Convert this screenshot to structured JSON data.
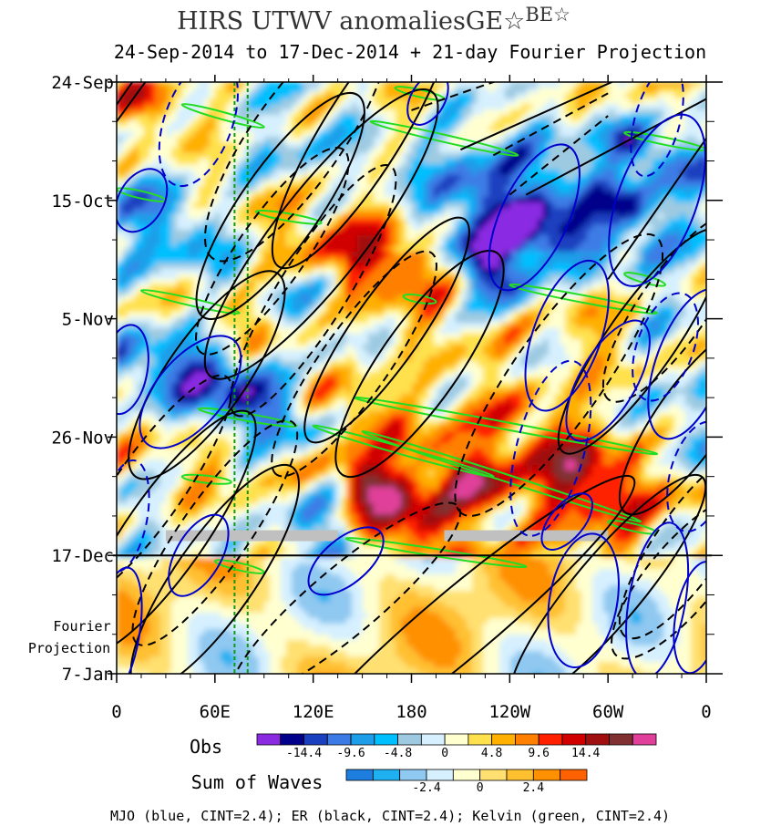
{
  "chart_data": {
    "type": "heatmap",
    "title": "HIRS UTWV anomaliesGE☆",
    "title_superscript": "BE☆",
    "subtitle": "24-Sep-2014 to 17-Dec-2014 + 21-day Fourier Projection",
    "x_tick_labels": [
      "0",
      "60E",
      "120E",
      "180",
      "120W",
      "60W",
      "0"
    ],
    "x_tick_lon": [
      0,
      60,
      120,
      180,
      240,
      300,
      360
    ],
    "xlim": [
      0,
      360
    ],
    "y_tick_labels": [
      "24-Sep",
      "15-Oct",
      "5-Nov",
      "26-Nov",
      "17-Dec",
      "7-Jan"
    ],
    "y_tick_days": [
      0,
      21,
      42,
      63,
      84,
      105
    ],
    "ylim_days": [
      0,
      105
    ],
    "projection_start_day": 84,
    "projection_label": [
      "Fourier",
      "Projection"
    ],
    "reference_lons": [
      72,
      80
    ],
    "obs_colorbar": {
      "label": "Obs",
      "colors": [
        "#8a2be2",
        "#00008b",
        "#1a3fbf",
        "#3c7be6",
        "#1e9ee8",
        "#00bfff",
        "#9ecae1",
        "#d6f0ff",
        "#ffffd0",
        "#ffe14d",
        "#ffb000",
        "#ff8000",
        "#ff2000",
        "#d00000",
        "#a01010",
        "#803030",
        "#e0409a"
      ],
      "tick_labels": [
        "-14.4",
        "-9.6",
        "-4.8",
        "0",
        "4.8",
        "9.6",
        "14.4"
      ]
    },
    "waves_colorbar": {
      "label": "Sum of Waves",
      "colors": [
        "#1e7ee0",
        "#1eb0f0",
        "#8fc8f0",
        "#d6f0ff",
        "#ffffd0",
        "#ffe070",
        "#ffc030",
        "#ff9000",
        "#ff6000"
      ],
      "tick_labels": [
        "-2.4",
        "0",
        "2.4"
      ]
    },
    "legend_text": "MJO (blue, CINT=2.4); ER (black, CINT=2.4); Kelvin (green, CINT=2.4)",
    "series_colors": {
      "mjo": "#0000cc",
      "er": "#000000",
      "kelvin": "#22dd22",
      "missing": "#c0c0c0"
    },
    "er_contours": [
      {
        "lon": 150,
        "day": 9,
        "a": 28,
        "b": 7,
        "ang": 58,
        "neg": false
      },
      {
        "lon": 110,
        "day": 10,
        "a": 26,
        "b": 8,
        "ang": 55,
        "neg": true
      },
      {
        "lon": 100,
        "day": 22,
        "a": 24,
        "b": 7,
        "ang": 55,
        "neg": false
      },
      {
        "lon": 125,
        "day": 27,
        "a": 32,
        "b": 8,
        "ang": 52,
        "neg": false
      },
      {
        "lon": 120,
        "day": 37,
        "a": 26,
        "b": 6,
        "ang": 58,
        "neg": true
      },
      {
        "lon": 95,
        "day": 30,
        "a": 22,
        "b": 6,
        "ang": 55,
        "neg": true
      },
      {
        "lon": 165,
        "day": 44,
        "a": 24,
        "b": 6,
        "ang": 55,
        "neg": false
      },
      {
        "lon": 145,
        "day": 50,
        "a": 24,
        "b": 6,
        "ang": 55,
        "neg": true
      },
      {
        "lon": 185,
        "day": 50,
        "a": 24,
        "b": 7,
        "ang": 55,
        "neg": false
      },
      {
        "lon": 55,
        "day": 52,
        "a": 22,
        "b": 7,
        "ang": 55,
        "neg": false
      },
      {
        "lon": 30,
        "day": 80,
        "a": 26,
        "b": 7,
        "ang": 55,
        "neg": false
      },
      {
        "lon": 60,
        "day": 80,
        "a": 24,
        "b": 6,
        "ang": 55,
        "neg": true
      },
      {
        "lon": 20,
        "day": 72,
        "a": 24,
        "b": 6,
        "ang": 55,
        "neg": true
      },
      {
        "lon": 60,
        "day": 88,
        "a": 24,
        "b": 7,
        "ang": 55,
        "neg": false
      },
      {
        "lon": 270,
        "day": 52,
        "a": 30,
        "b": 8,
        "ang": 55,
        "neg": true
      },
      {
        "lon": 320,
        "day": 46,
        "a": 24,
        "b": 6,
        "ang": 55,
        "neg": false
      },
      {
        "lon": 340,
        "day": 40,
        "a": 20,
        "b": 6,
        "ang": 55,
        "neg": true
      },
      {
        "lon": 350,
        "day": 60,
        "a": 20,
        "b": 6,
        "ang": 55,
        "neg": false
      },
      {
        "lon": 350,
        "day": 82,
        "a": 20,
        "b": 6,
        "ang": 55,
        "neg": true
      },
      {
        "lon": 210,
        "day": 96,
        "a": 40,
        "b": 6,
        "ang": 40,
        "neg": false
      },
      {
        "lon": 140,
        "day": 92,
        "a": 26,
        "b": 6,
        "ang": 40,
        "neg": true
      },
      {
        "lon": 300,
        "day": 90,
        "a": 26,
        "b": 6,
        "ang": 50,
        "neg": false
      },
      {
        "lon": 345,
        "day": 88,
        "a": 18,
        "b": 6,
        "ang": 50,
        "neg": true
      }
    ],
    "er_lines": [
      {
        "lon1": 0,
        "day1": 4,
        "lon2": 12,
        "day2": -1,
        "neg": false
      },
      {
        "lon1": 0,
        "day1": 7,
        "lon2": 20,
        "day2": -1,
        "neg": false
      },
      {
        "lon1": 210,
        "day1": 12,
        "lon2": 310,
        "day2": -1,
        "neg": false
      },
      {
        "lon1": 250,
        "day1": 20,
        "lon2": 360,
        "day2": 3,
        "neg": false
      },
      {
        "lon1": 240,
        "day1": 20,
        "lon2": 300,
        "day2": 6,
        "neg": true
      },
      {
        "lon1": 300,
        "day1": 35,
        "lon2": 360,
        "day2": 10,
        "neg": false
      },
      {
        "lon1": 180,
        "day1": 5,
        "lon2": 240,
        "day2": -1,
        "neg": true
      },
      {
        "lon1": 230,
        "day1": 13,
        "lon2": 300,
        "day2": 2,
        "neg": true
      }
    ],
    "mjo_contours": [
      {
        "lon": 15,
        "day": 21,
        "a": 6,
        "b": 4,
        "ang": 60,
        "neg": false
      },
      {
        "lon": 50,
        "day": 7,
        "a": 12,
        "b": 6,
        "ang": 70,
        "neg": true
      },
      {
        "lon": 255,
        "day": 24,
        "a": 14,
        "b": 6,
        "ang": 65,
        "neg": false
      },
      {
        "lon": 330,
        "day": 21,
        "a": 16,
        "b": 7,
        "ang": 70,
        "neg": false
      },
      {
        "lon": 330,
        "day": 7,
        "a": 10,
        "b": 4,
        "ang": 75,
        "neg": true
      },
      {
        "lon": 190,
        "day": 3,
        "a": 5,
        "b": 3,
        "ang": 60,
        "neg": false
      },
      {
        "lon": 275,
        "day": 45,
        "a": 14,
        "b": 6,
        "ang": 70,
        "neg": false
      },
      {
        "lon": 300,
        "day": 53,
        "a": 12,
        "b": 5,
        "ang": 60,
        "neg": false
      },
      {
        "lon": 335,
        "day": 47,
        "a": 10,
        "b": 5,
        "ang": 70,
        "neg": true
      },
      {
        "lon": 350,
        "day": 50,
        "a": 14,
        "b": 6,
        "ang": 70,
        "neg": false
      },
      {
        "lon": 265,
        "day": 65,
        "a": 16,
        "b": 6,
        "ang": 75,
        "neg": true
      },
      {
        "lon": 355,
        "day": 70,
        "a": 10,
        "b": 5,
        "ang": 75,
        "neg": true
      },
      {
        "lon": 45,
        "day": 55,
        "a": 12,
        "b": 6,
        "ang": 50,
        "neg": false
      },
      {
        "lon": 5,
        "day": 51,
        "a": 8,
        "b": 4,
        "ang": 80,
        "neg": false
      },
      {
        "lon": 5,
        "day": 77,
        "a": 10,
        "b": 4,
        "ang": 80,
        "neg": true
      },
      {
        "lon": 50,
        "day": 84,
        "a": 8,
        "b": 4,
        "ang": 60,
        "neg": false
      },
      {
        "lon": 285,
        "day": 92,
        "a": 12,
        "b": 6,
        "ang": 80,
        "neg": false
      },
      {
        "lon": 330,
        "day": 92,
        "a": 14,
        "b": 5,
        "ang": 80,
        "neg": false
      },
      {
        "lon": 355,
        "day": 95,
        "a": 10,
        "b": 4,
        "ang": 80,
        "neg": false
      },
      {
        "lon": 140,
        "day": 85,
        "a": 8,
        "b": 4,
        "ang": 40,
        "neg": false
      },
      {
        "lon": 275,
        "day": 78,
        "a": 6,
        "b": 3,
        "ang": 50,
        "neg": false
      },
      {
        "lon": 0,
        "day": 98,
        "a": 12,
        "b": 4,
        "ang": 80,
        "neg": false
      }
    ],
    "kelvin_bands": [
      {
        "lon1": 40,
        "day1": 4,
        "lon2": 90,
        "day2": 8
      },
      {
        "lon1": 170,
        "day1": 1,
        "lon2": 200,
        "day2": 3
      },
      {
        "lon1": 155,
        "day1": 7,
        "lon2": 245,
        "day2": 13
      },
      {
        "lon1": 310,
        "day1": 9,
        "lon2": 360,
        "day2": 12
      },
      {
        "lon1": 0,
        "day1": 19,
        "lon2": 30,
        "day2": 21
      },
      {
        "lon1": 85,
        "day1": 23,
        "lon2": 125,
        "day2": 25
      },
      {
        "lon1": 15,
        "day1": 37,
        "lon2": 75,
        "day2": 41
      },
      {
        "lon1": 175,
        "day1": 38,
        "lon2": 195,
        "day2": 39
      },
      {
        "lon1": 240,
        "day1": 36,
        "lon2": 330,
        "day2": 41
      },
      {
        "lon1": 310,
        "day1": 34,
        "lon2": 335,
        "day2": 36
      },
      {
        "lon1": 145,
        "day1": 56,
        "lon2": 330,
        "day2": 66
      },
      {
        "lon1": 50,
        "day1": 58,
        "lon2": 110,
        "day2": 61
      },
      {
        "lon1": 120,
        "day1": 61,
        "lon2": 230,
        "day2": 70
      },
      {
        "lon1": 150,
        "day1": 62,
        "lon2": 320,
        "day2": 78
      },
      {
        "lon1": 40,
        "day1": 70,
        "lon2": 70,
        "day2": 71
      },
      {
        "lon1": 60,
        "day1": 85,
        "lon2": 90,
        "day2": 87
      },
      {
        "lon1": 140,
        "day1": 81,
        "lon2": 250,
        "day2": 86
      },
      {
        "lon1": 300,
        "day1": 78,
        "lon2": 330,
        "day2": 80
      }
    ],
    "missing_bars": [
      {
        "lon1": 30,
        "lon2": 135,
        "day": 80.5
      },
      {
        "lon1": 200,
        "lon2": 300,
        "day": 80.5
      }
    ]
  }
}
